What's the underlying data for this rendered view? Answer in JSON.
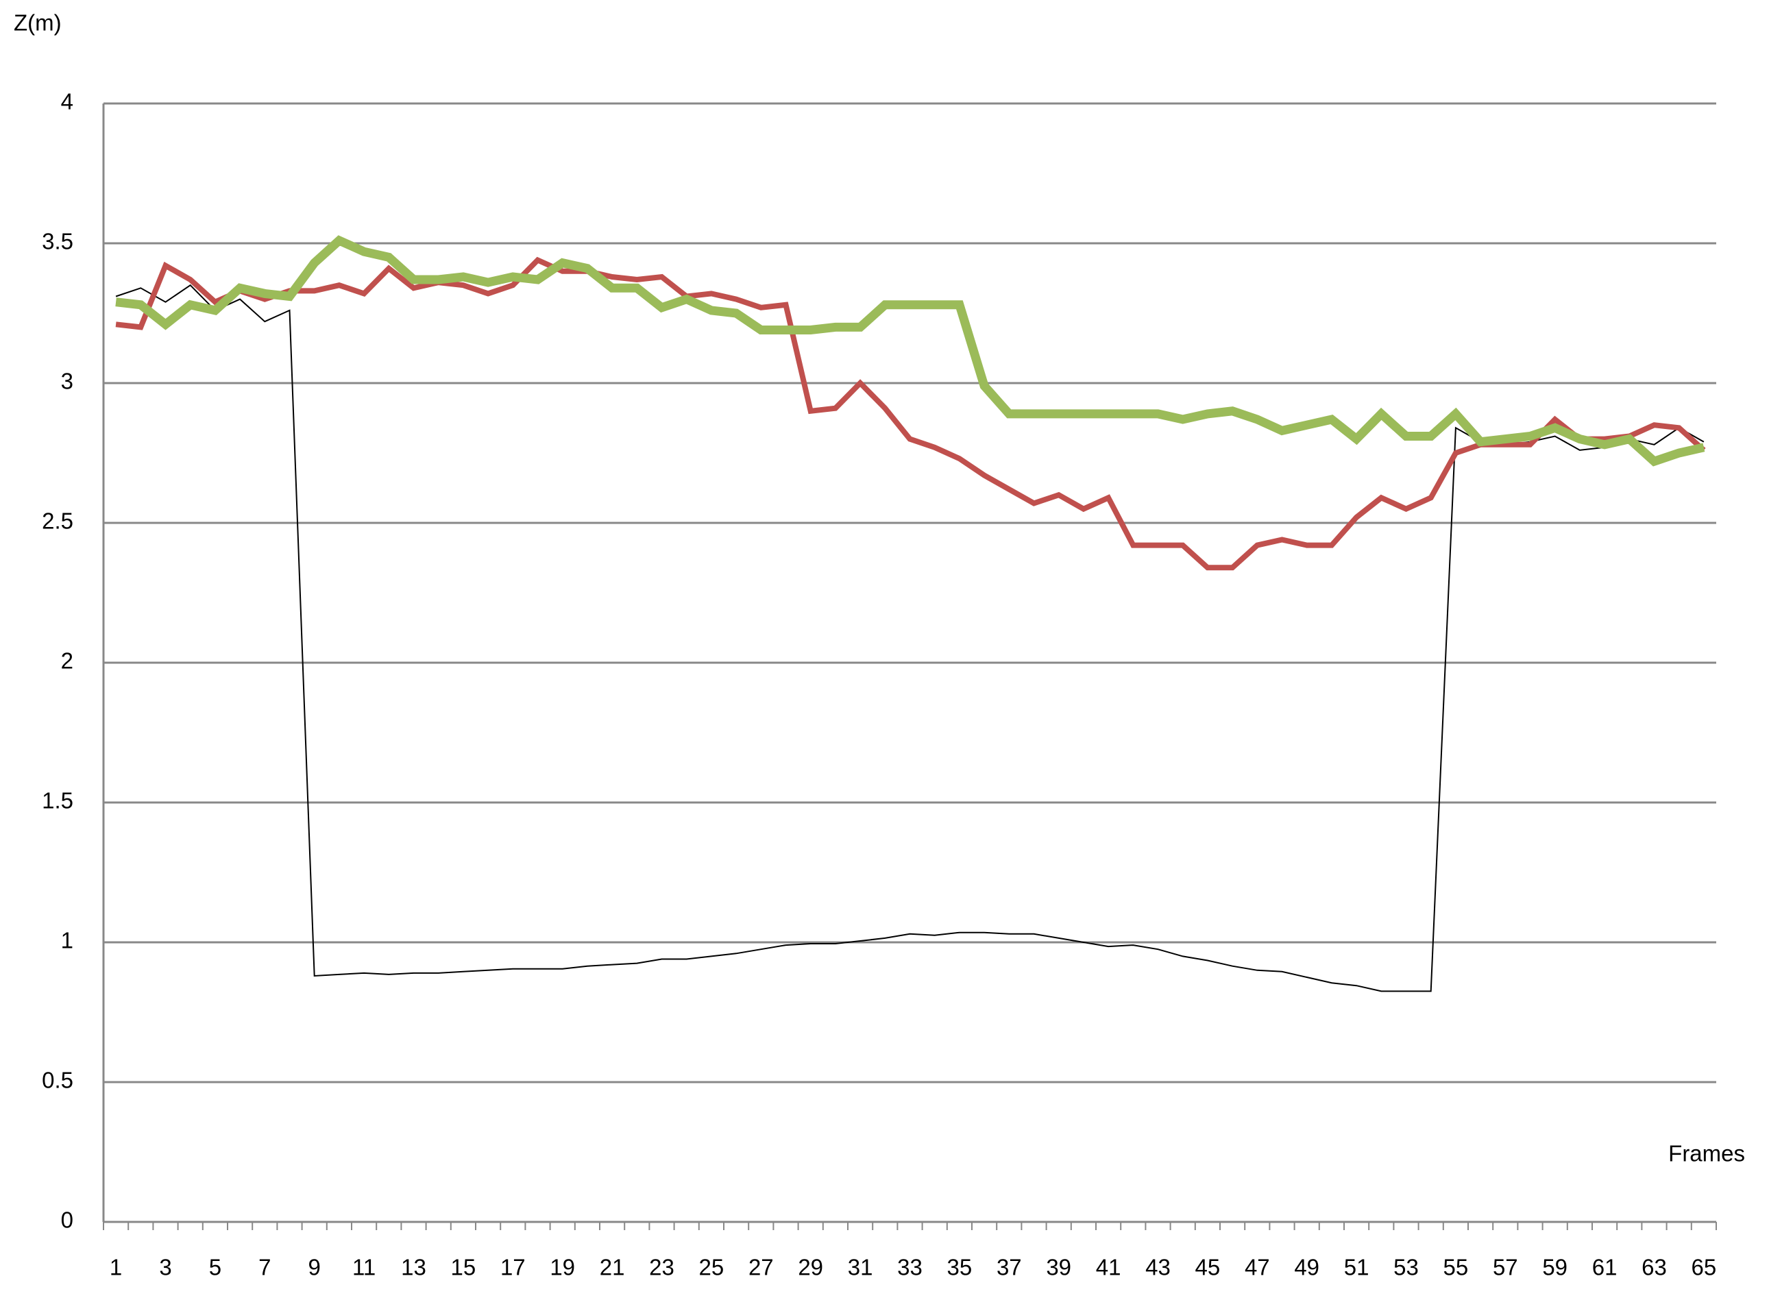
{
  "chart_data": {
    "type": "line",
    "y_label": "Z(m)",
    "x_label": "Frames",
    "categories": [
      "1",
      null,
      "3",
      null,
      "5",
      null,
      "7",
      null,
      "9",
      null,
      "11",
      null,
      "13",
      null,
      "15",
      null,
      "17",
      null,
      "19",
      null,
      "21",
      null,
      "23",
      null,
      "25",
      null,
      "27",
      null,
      "29",
      null,
      "31",
      null,
      "33",
      null,
      "35",
      null,
      "37",
      null,
      "39",
      null,
      "41",
      null,
      "43",
      null,
      "45",
      null,
      "47",
      null,
      "49",
      null,
      "51",
      null,
      "53",
      null,
      "55",
      null,
      "57",
      null,
      "59",
      null,
      "61",
      null,
      "63",
      null,
      "65"
    ],
    "series": [
      {
        "color": "#000000",
        "values": [
          3.31,
          3.34,
          3.29,
          3.35,
          3.26,
          3.3,
          3.22,
          3.26,
          0.88,
          0.885,
          0.89,
          0.885,
          0.89,
          0.89,
          0.895,
          0.9,
          0.905,
          0.905,
          0.905,
          0.915,
          0.92,
          0.925,
          0.94,
          0.94,
          0.95,
          0.96,
          0.975,
          0.99,
          0.995,
          0.995,
          1.005,
          1.015,
          1.03,
          1.025,
          1.035,
          1.035,
          1.03,
          1.03,
          1.015,
          1.0,
          0.985,
          0.99,
          0.975,
          0.95,
          0.935,
          0.915,
          0.9,
          0.895,
          0.875,
          0.855,
          0.845,
          0.825,
          0.825,
          0.825,
          2.84,
          2.79,
          2.78,
          2.79,
          2.81,
          2.76,
          2.77,
          2.8,
          2.78,
          2.84,
          2.79
        ]
      },
      {
        "color": "#c0504d",
        "values": [
          3.21,
          3.2,
          3.42,
          3.37,
          3.29,
          3.33,
          3.3,
          3.33,
          3.33,
          3.35,
          3.32,
          3.41,
          3.34,
          3.36,
          3.35,
          3.32,
          3.35,
          3.44,
          3.4,
          3.4,
          3.38,
          3.37,
          3.38,
          3.31,
          3.32,
          3.3,
          3.27,
          3.28,
          2.9,
          2.91,
          3.0,
          2.91,
          2.8,
          2.77,
          2.73,
          2.67,
          2.62,
          2.57,
          2.6,
          2.55,
          2.59,
          2.42,
          2.42,
          2.42,
          2.34,
          2.34,
          2.42,
          2.44,
          2.42,
          2.42,
          2.52,
          2.59,
          2.55,
          2.59,
          2.75,
          2.78,
          2.78,
          2.78,
          2.87,
          2.8,
          2.8,
          2.81,
          2.85,
          2.84,
          2.76
        ]
      },
      {
        "color": "#9bbb59",
        "values": [
          3.29,
          3.28,
          3.21,
          3.28,
          3.26,
          3.34,
          3.32,
          3.31,
          3.43,
          3.51,
          3.47,
          3.45,
          3.37,
          3.37,
          3.38,
          3.36,
          3.38,
          3.37,
          3.43,
          3.41,
          3.34,
          3.34,
          3.27,
          3.3,
          3.26,
          3.25,
          3.19,
          3.19,
          3.19,
          3.2,
          3.2,
          3.28,
          3.28,
          3.28,
          3.28,
          2.99,
          2.89,
          2.89,
          2.89,
          2.89,
          2.89,
          2.89,
          2.89,
          2.87,
          2.89,
          2.9,
          2.87,
          2.83,
          2.85,
          2.87,
          2.8,
          2.89,
          2.81,
          2.81,
          2.89,
          2.79,
          2.8,
          2.81,
          2.84,
          2.8,
          2.78,
          2.8,
          2.72,
          2.75,
          2.77
        ]
      }
    ],
    "ylim": [
      0,
      4
    ],
    "yticks": [
      0,
      0.5,
      1,
      1.5,
      2,
      2.5,
      3,
      3.5,
      4
    ],
    "grid": true
  }
}
